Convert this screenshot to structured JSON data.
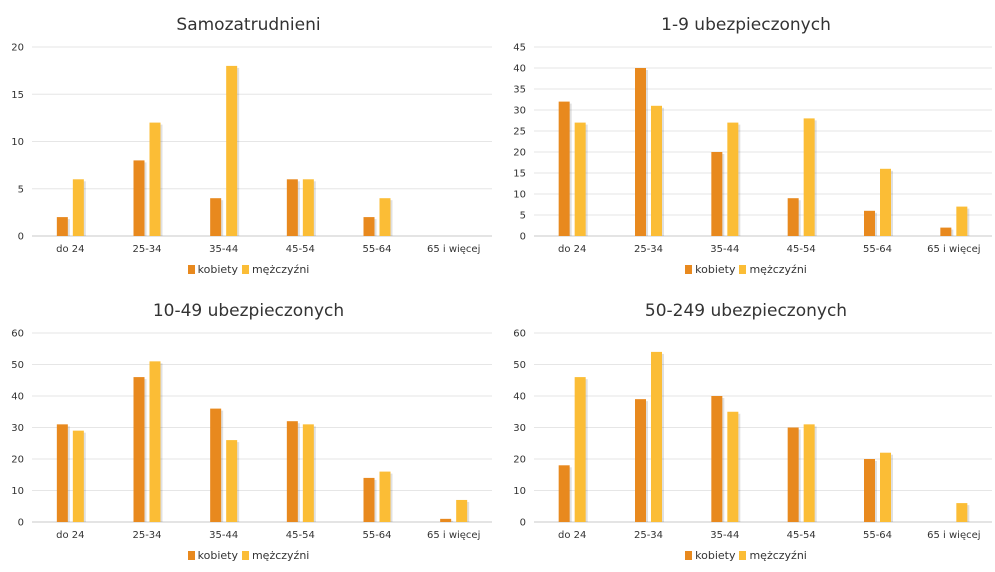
{
  "colors": {
    "kobiety": "#e8891e",
    "mezczyzni": "#fbbd36",
    "grid": "#e6e6e6",
    "axis": "#c8c8c8",
    "text": "#333333"
  },
  "chart_data": [
    {
      "type": "bar",
      "title": "Samozatrudnieni",
      "categories": [
        "do 24",
        "25-34",
        "35-44",
        "45-54",
        "55-64",
        "65 i więcej"
      ],
      "series": [
        {
          "name": "kobiety",
          "values": [
            2,
            8,
            4,
            6,
            2,
            0
          ]
        },
        {
          "name": "mężczyźni",
          "values": [
            6,
            12,
            18,
            6,
            4,
            0
          ]
        }
      ],
      "ylim": [
        0,
        20
      ],
      "yticks": [
        0,
        5,
        10,
        15,
        20
      ],
      "grid": true,
      "legend": "bottom"
    },
    {
      "type": "bar",
      "title": "1-9 ubezpieczonych",
      "categories": [
        "do 24",
        "25-34",
        "35-44",
        "45-54",
        "55-64",
        "65 i więcej"
      ],
      "series": [
        {
          "name": "kobiety",
          "values": [
            32,
            40,
            20,
            9,
            6,
            2
          ]
        },
        {
          "name": "mężczyźni",
          "values": [
            27,
            31,
            27,
            28,
            16,
            7
          ]
        }
      ],
      "ylim": [
        0,
        45
      ],
      "yticks": [
        0,
        5,
        10,
        15,
        20,
        25,
        30,
        35,
        40,
        45
      ],
      "grid": true,
      "legend": "bottom"
    },
    {
      "type": "bar",
      "title": "10-49 ubezpieczonych",
      "categories": [
        "do 24",
        "25-34",
        "35-44",
        "45-54",
        "55-64",
        "65 i więcej"
      ],
      "series": [
        {
          "name": "kobiety",
          "values": [
            31,
            46,
            36,
            32,
            14,
            1
          ]
        },
        {
          "name": "mężczyźni",
          "values": [
            29,
            51,
            26,
            31,
            16,
            7
          ]
        }
      ],
      "ylim": [
        0,
        60
      ],
      "yticks": [
        0,
        10,
        20,
        30,
        40,
        50,
        60
      ],
      "grid": true,
      "legend": "bottom"
    },
    {
      "type": "bar",
      "title": "50-249 ubezpieczonych",
      "categories": [
        "do 24",
        "25-34",
        "35-44",
        "45-54",
        "55-64",
        "65 i więcej"
      ],
      "series": [
        {
          "name": "kobiety",
          "values": [
            18,
            39,
            40,
            30,
            20,
            0
          ]
        },
        {
          "name": "mężczyźni",
          "values": [
            46,
            54,
            35,
            31,
            22,
            6
          ]
        }
      ],
      "ylim": [
        0,
        60
      ],
      "yticks": [
        0,
        10,
        20,
        30,
        40,
        50,
        60
      ],
      "grid": true,
      "legend": "bottom"
    }
  ]
}
